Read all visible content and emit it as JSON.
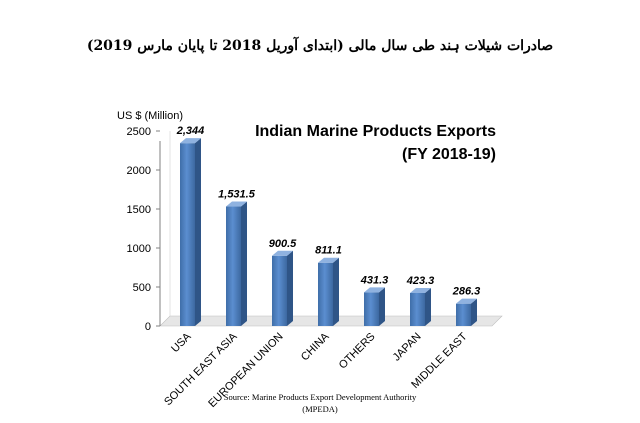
{
  "page": {
    "urdu_heading": "صادرات شیلات ہند طی سال مالی (ابتدای آوریل 2018 تا پایان مارس 2019)",
    "source_line1": "Source: Marine Products Export Development Authority",
    "source_line2": "(MPEDA)"
  },
  "chart_data": {
    "type": "bar",
    "title": "Indian Marine Products Exports",
    "subtitle": "(FY 2018-19)",
    "ylabel": "US $ (Million)",
    "xlabel": "",
    "categories": [
      "USA",
      "SOUTH EAST ASIA",
      "EUROPEAN UNION",
      "CHINA",
      "OTHERS",
      "JAPAN",
      "MIDDLE EAST"
    ],
    "values": [
      2344,
      1531.5,
      900.5,
      811.1,
      431.3,
      423.3,
      286.3
    ],
    "data_labels": [
      "2,344",
      "1,531.5",
      "900.5",
      "811.1",
      "431.3",
      "423.3",
      "286.3"
    ],
    "ylim": [
      0,
      2500
    ],
    "yticks": [
      "0",
      "500",
      "1000",
      "1500",
      "2000",
      "2500"
    ],
    "grid": false,
    "legend": "none",
    "bar_color": "#4f81bd"
  }
}
